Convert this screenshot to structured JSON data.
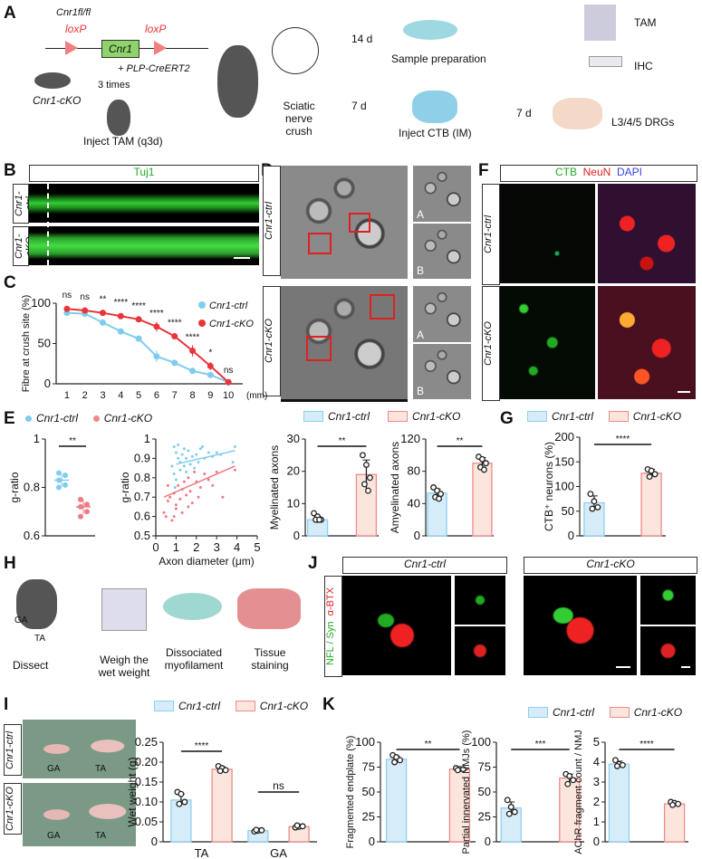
{
  "panel_letters": [
    "A",
    "B",
    "C",
    "D",
    "E",
    "F",
    "G",
    "H",
    "I",
    "J",
    "K"
  ],
  "colors": {
    "ctrl_fill": "#d6ecf8",
    "ctrl_stroke": "#8fd0f0",
    "ctrl_line": "#7fcdee",
    "cko_fill": "#fbe5dc",
    "cko_stroke": "#ee8a8a",
    "cko_line": "#e8343a",
    "tuj1": "#33cc33",
    "neun": "#e02020",
    "dapi": "#3344dd"
  },
  "legend": {
    "ctrl": "Cnr1-ctrl",
    "cko": "Cnr1-cKO"
  },
  "A": {
    "genotype": "Cnr1fl/fl",
    "loxp1": "loxP",
    "gene": "Cnr1",
    "loxp2": "loxP",
    "cre": "+ PLP-CreERT2",
    "cko": "Cnr1-cKO",
    "times": "3 times",
    "inject_tam": "Inject TAM (q3d)",
    "crush": "Sciatic nerve crush",
    "d14": "14 d",
    "d7a": "7 d",
    "sample_prep": "Sample preparation",
    "inject_ctb": "Inject CTB (IM)",
    "d7b": "7 d",
    "tam": "TAM",
    "ihc": "IHC",
    "drgs": "L3/4/5 DRGs"
  },
  "B": {
    "header": "Tuj1",
    "row1": "Cnr1-ctrl",
    "row2": "Cnr1-cKO"
  },
  "D": {
    "row1": "Cnr1-ctrl",
    "row2": "Cnr1-cKO",
    "inset_a": "A",
    "inset_b": "B"
  },
  "F": {
    "ctb": "CTB",
    "neun": "NeuN",
    "dapi": "DAPI",
    "row1": "Cnr1-ctrl",
    "row2": "Cnr1-cKO"
  },
  "H": {
    "ga": "GA",
    "ta": "TA",
    "steps": [
      "Dissect",
      "Weigh the wet weight",
      "Dissociated myofilament",
      "Tissue staining"
    ]
  },
  "J": {
    "col1": "Cnr1-ctrl",
    "col2": "Cnr1-cKO",
    "stain1": "NFL / Syn",
    "stain2": "α-BTX"
  },
  "I": {
    "row1": "Cnr1-ctrl",
    "row2": "Cnr1-cKO",
    "ga": "GA",
    "ta": "TA"
  },
  "chart_data": [
    {
      "id": "C",
      "type": "line",
      "ylabel": "Fibre at crush site (%)",
      "xunit": "(mm)",
      "ylim": [
        0,
        100
      ],
      "yticks": [
        0,
        50,
        100
      ],
      "x": [
        1,
        2,
        3,
        4,
        5,
        6,
        7,
        8,
        9,
        10
      ],
      "series": [
        {
          "name": "Cnr1-ctrl",
          "values": [
            88,
            87,
            76,
            65,
            56,
            34,
            26,
            16,
            11,
            2
          ],
          "err": [
            2,
            2,
            4,
            4,
            3,
            7,
            2,
            2,
            3,
            1
          ]
        },
        {
          "name": "Cnr1-cKO",
          "values": [
            93,
            91,
            88,
            84,
            80,
            71,
            59,
            41,
            22,
            2
          ],
          "err": [
            3,
            2,
            3,
            2,
            2,
            6,
            2,
            7,
            5,
            1
          ]
        }
      ],
      "significance": [
        "ns",
        "ns",
        "**",
        "****",
        "****",
        "****",
        "****",
        "****",
        "*",
        "ns"
      ],
      "legend": "top-right"
    },
    {
      "id": "E1",
      "type": "dot",
      "ylabel": "g-ratio",
      "ylim": [
        0.6,
        1.0
      ],
      "yticks": [
        0.6,
        0.8,
        1.0
      ],
      "sig": "**",
      "groups": [
        {
          "series": "Cnr1-ctrl",
          "mean": 0.83,
          "sd": 0.025,
          "points": [
            0.86,
            0.85,
            0.83,
            0.81,
            0.8
          ]
        },
        {
          "series": "Cnr1-cKO",
          "mean": 0.72,
          "sd": 0.03,
          "points": [
            0.75,
            0.73,
            0.72,
            0.7,
            0.68
          ]
        }
      ]
    },
    {
      "id": "E2",
      "type": "scatter",
      "ylabel": "g-ratio",
      "xlabel": "Axon diameter (μm)",
      "xlim": [
        0,
        5
      ],
      "ylim": [
        0.5,
        1.0
      ],
      "xticks": [
        0,
        1,
        2,
        3,
        4,
        5
      ],
      "yticks": [
        0.5,
        0.6,
        0.7,
        0.8,
        0.9,
        1.0
      ],
      "series": [
        {
          "name": "Cnr1-ctrl",
          "points": [
            [
              0.9,
              0.96
            ],
            [
              1.0,
              0.93
            ],
            [
              1.1,
              0.9
            ],
            [
              1.2,
              0.88
            ],
            [
              1.3,
              0.92
            ],
            [
              1.4,
              0.86
            ],
            [
              1.5,
              0.9
            ],
            [
              1.6,
              0.94
            ],
            [
              1.7,
              0.87
            ],
            [
              1.8,
              0.91
            ],
            [
              2.0,
              0.92
            ],
            [
              2.2,
              0.95
            ],
            [
              2.4,
              0.9
            ],
            [
              2.6,
              0.93
            ],
            [
              0.8,
              0.86
            ],
            [
              0.9,
              0.82
            ],
            [
              1.0,
              0.79
            ],
            [
              1.2,
              0.84
            ],
            [
              1.5,
              0.83
            ],
            [
              1.9,
              0.85
            ],
            [
              2.1,
              0.88
            ],
            [
              3.0,
              0.93
            ],
            [
              3.2,
              0.92
            ],
            [
              3.9,
              0.96
            ],
            [
              3.8,
              0.88
            ],
            [
              2.8,
              0.91
            ],
            [
              1.4,
              0.95
            ],
            [
              1.1,
              0.97
            ],
            [
              2.3,
              0.96
            ],
            [
              0.95,
              0.75
            ]
          ],
          "trend": [
            [
              1.0,
              0.87
            ],
            [
              3.9,
              0.94
            ]
          ]
        },
        {
          "name": "Cnr1-cKO",
          "points": [
            [
              0.4,
              0.62
            ],
            [
              0.5,
              0.6
            ],
            [
              0.6,
              0.68
            ],
            [
              0.7,
              0.7
            ],
            [
              0.8,
              0.58
            ],
            [
              0.9,
              0.72
            ],
            [
              1.0,
              0.66
            ],
            [
              1.1,
              0.76
            ],
            [
              1.2,
              0.69
            ],
            [
              1.3,
              0.74
            ],
            [
              1.4,
              0.78
            ],
            [
              1.5,
              0.71
            ],
            [
              1.6,
              0.8
            ],
            [
              1.7,
              0.73
            ],
            [
              1.8,
              0.67
            ],
            [
              2.0,
              0.78
            ],
            [
              2.2,
              0.75
            ],
            [
              2.4,
              0.82
            ],
            [
              2.6,
              0.79
            ],
            [
              2.8,
              0.76
            ],
            [
              3.0,
              0.83
            ],
            [
              3.3,
              0.7
            ],
            [
              3.9,
              0.84
            ],
            [
              0.6,
              0.76
            ],
            [
              1.0,
              0.64
            ],
            [
              1.3,
              0.62
            ],
            [
              1.9,
              0.83
            ],
            [
              2.1,
              0.7
            ],
            [
              0.9,
              0.6
            ],
            [
              1.6,
              0.65
            ]
          ],
          "trend": [
            [
              0.4,
              0.7
            ],
            [
              3.9,
              0.86
            ]
          ]
        }
      ]
    },
    {
      "id": "E3",
      "type": "bar",
      "ylabel": "Myelinated axons",
      "ylim": [
        0,
        30
      ],
      "yticks": [
        0,
        10,
        20,
        30
      ],
      "groups": [
        {
          "label": "",
          "sig": "**",
          "bars": [
            {
              "series": "Cnr1-ctrl",
              "mean": 5,
              "sd": 1,
              "points": [
                7,
                6,
                5,
                5,
                5
              ]
            },
            {
              "series": "Cnr1-cKO",
              "mean": 19,
              "sd": 4.5,
              "points": [
                25,
                22,
                18,
                16,
                14
              ]
            }
          ]
        }
      ]
    },
    {
      "id": "E4",
      "type": "bar",
      "ylabel": "Amyelinated axons",
      "ylim": [
        0,
        120
      ],
      "yticks": [
        0,
        40,
        80,
        120
      ],
      "groups": [
        {
          "label": "",
          "sig": "**",
          "bars": [
            {
              "series": "Cnr1-ctrl",
              "mean": 53,
              "sd": 5,
              "points": [
                60,
                56,
                52,
                48,
                46
              ]
            },
            {
              "series": "Cnr1-cKO",
              "mean": 90,
              "sd": 7,
              "points": [
                98,
                95,
                90,
                85,
                82
              ]
            }
          ]
        }
      ]
    },
    {
      "id": "G",
      "type": "bar",
      "ylabel": "CTB⁺ neurons (%)",
      "ylim": [
        0,
        200
      ],
      "yticks": [
        0,
        50,
        100,
        150,
        200
      ],
      "groups": [
        {
          "label": "",
          "sig": "****",
          "bars": [
            {
              "series": "Cnr1-ctrl",
              "mean": 67,
              "sd": 14,
              "points": [
                85,
                70,
                58,
                55
              ]
            },
            {
              "series": "Cnr1-cKO",
              "mean": 127,
              "sd": 8,
              "points": [
                135,
                132,
                125,
                120
              ]
            }
          ]
        }
      ]
    },
    {
      "id": "I",
      "type": "bar",
      "ylabel": "Wet weight (g)",
      "ylim": [
        0,
        0.25
      ],
      "yticks": [
        0,
        0.05,
        0.1,
        0.15,
        0.2,
        0.25
      ],
      "ytick_labels": [
        "0",
        "0.05",
        "0.10",
        "0.15",
        "0.20",
        "0.25"
      ],
      "groups": [
        {
          "label": "TA",
          "sig": "****",
          "bars": [
            {
              "series": "Cnr1-ctrl",
              "mean": 0.105,
              "sd": 0.015,
              "points": [
                0.125,
                0.12,
                0.1,
                0.095
              ]
            },
            {
              "series": "Cnr1-cKO",
              "mean": 0.182,
              "sd": 0.006,
              "points": [
                0.19,
                0.185,
                0.18,
                0.178
              ]
            }
          ]
        },
        {
          "label": "GA",
          "sig": "ns",
          "bars": [
            {
              "series": "Cnr1-ctrl",
              "mean": 0.028,
              "sd": 0.002,
              "points": [
                0.026,
                0.028,
                0.029,
                0.03
              ]
            },
            {
              "series": "Cnr1-cKO",
              "mean": 0.038,
              "sd": 0.002,
              "points": [
                0.036,
                0.038,
                0.039,
                0.041
              ]
            }
          ]
        }
      ]
    },
    {
      "id": "K1",
      "type": "bar",
      "ylabel": "Fragmented endplate (%)",
      "ylim": [
        0,
        100
      ],
      "yticks": [
        0,
        25,
        50,
        75,
        100
      ],
      "groups": [
        {
          "label": "",
          "sig": "**",
          "bars": [
            {
              "series": "Cnr1-ctrl",
              "mean": 83,
              "sd": 3,
              "points": [
                87,
                85,
                82,
                80
              ]
            },
            {
              "series": "Cnr1-cKO",
              "mean": 73,
              "sd": 1,
              "points": [
                74,
                73,
                73,
                72
              ]
            }
          ]
        }
      ]
    },
    {
      "id": "K2",
      "type": "bar",
      "ylabel": "Partial  innervated NMJs (%)",
      "ylim": [
        0,
        100
      ],
      "yticks": [
        0,
        25,
        50,
        75,
        100
      ],
      "groups": [
        {
          "label": "",
          "sig": "***",
          "bars": [
            {
              "series": "Cnr1-ctrl",
              "mean": 34,
              "sd": 6,
              "points": [
                42,
                35,
                30,
                28
              ]
            },
            {
              "series": "Cnr1-cKO",
              "mean": 64,
              "sd": 4,
              "points": [
                68,
                66,
                62,
                58
              ]
            }
          ]
        }
      ]
    },
    {
      "id": "K3",
      "type": "bar",
      "ylabel": "AChR fragment count / NMJ",
      "ylim": [
        0,
        5
      ],
      "yticks": [
        0,
        1,
        2,
        3,
        4,
        5
      ],
      "groups": [
        {
          "label": "",
          "sig": "****",
          "bars": [
            {
              "series": "Cnr1-ctrl",
              "mean": 3.9,
              "sd": 0.15,
              "points": [
                4.1,
                3.9,
                3.85,
                3.8
              ]
            },
            {
              "series": "Cnr1-cKO",
              "mean": 1.9,
              "sd": 0.07,
              "points": [
                2.0,
                1.95,
                1.9,
                1.85
              ]
            }
          ]
        }
      ]
    }
  ]
}
